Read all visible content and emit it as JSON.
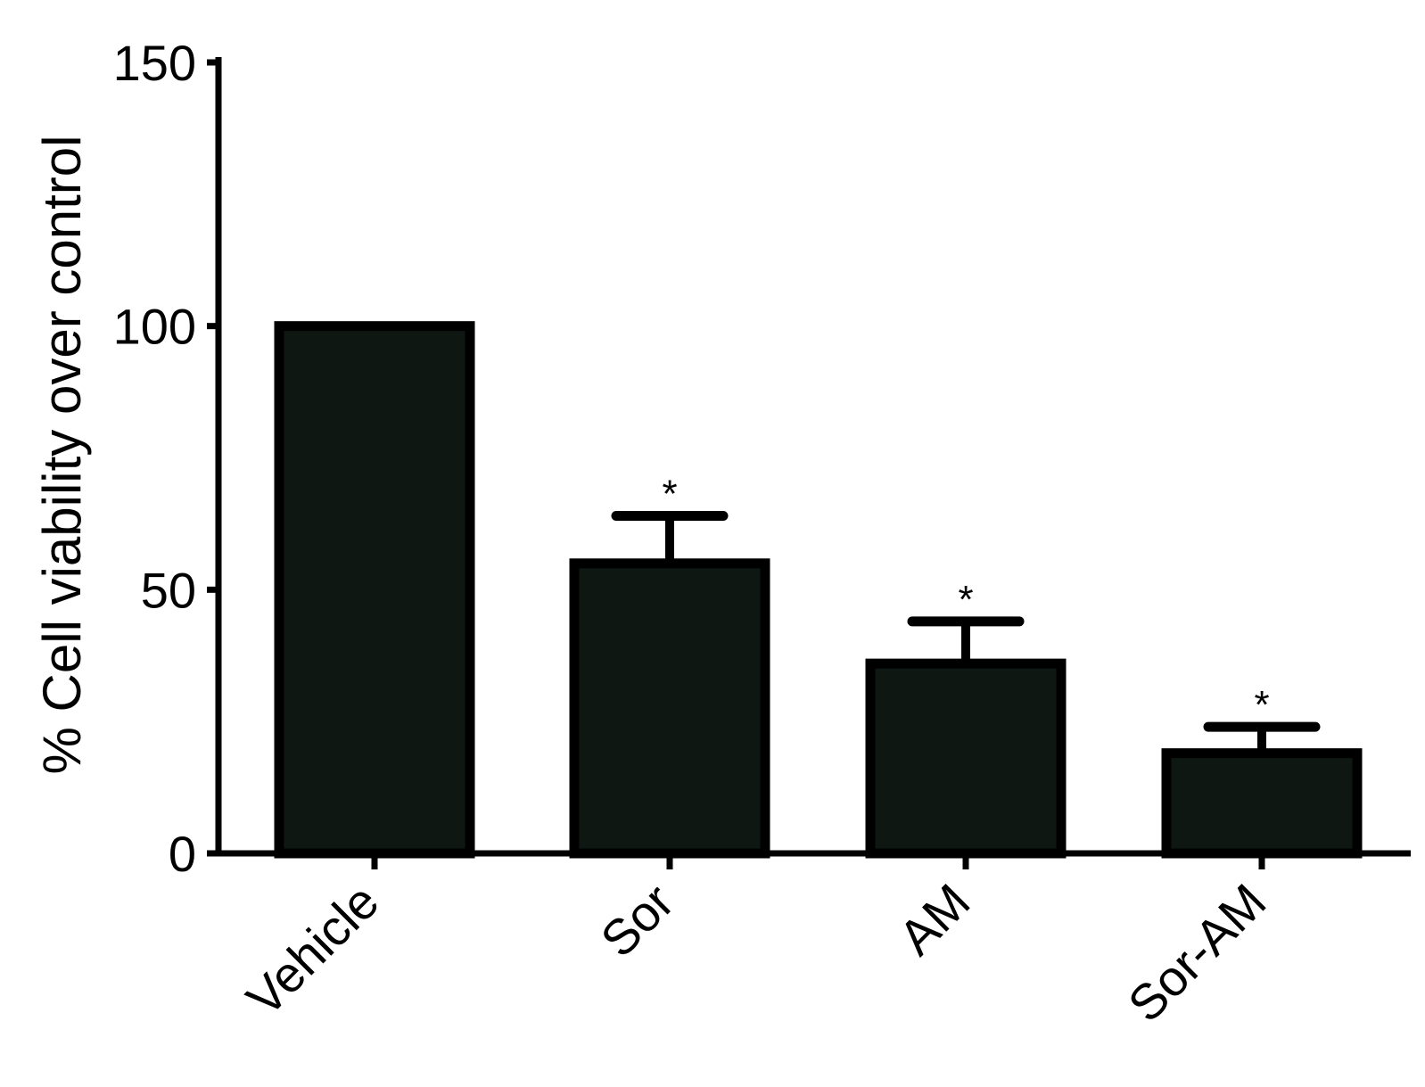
{
  "chart_data": {
    "type": "bar",
    "title": "",
    "xlabel": "",
    "ylabel": "% Cell viability over control",
    "categories": [
      "Vehicle",
      "Sor",
      "AM",
      "Sor-AM"
    ],
    "values": [
      100,
      55,
      36,
      19
    ],
    "error": [
      0,
      9,
      8,
      5
    ],
    "significance": [
      "",
      "*",
      "*",
      "*"
    ],
    "ylim": [
      0,
      150
    ],
    "yticks": [
      0,
      50,
      100,
      150
    ],
    "ytick_labels": [
      "0",
      "50",
      "100",
      "150"
    ],
    "grid": false,
    "legend": "none",
    "colors": {
      "bar_fill": "#0f1713",
      "bar_edge": "#000000",
      "axis": "#000000"
    }
  }
}
